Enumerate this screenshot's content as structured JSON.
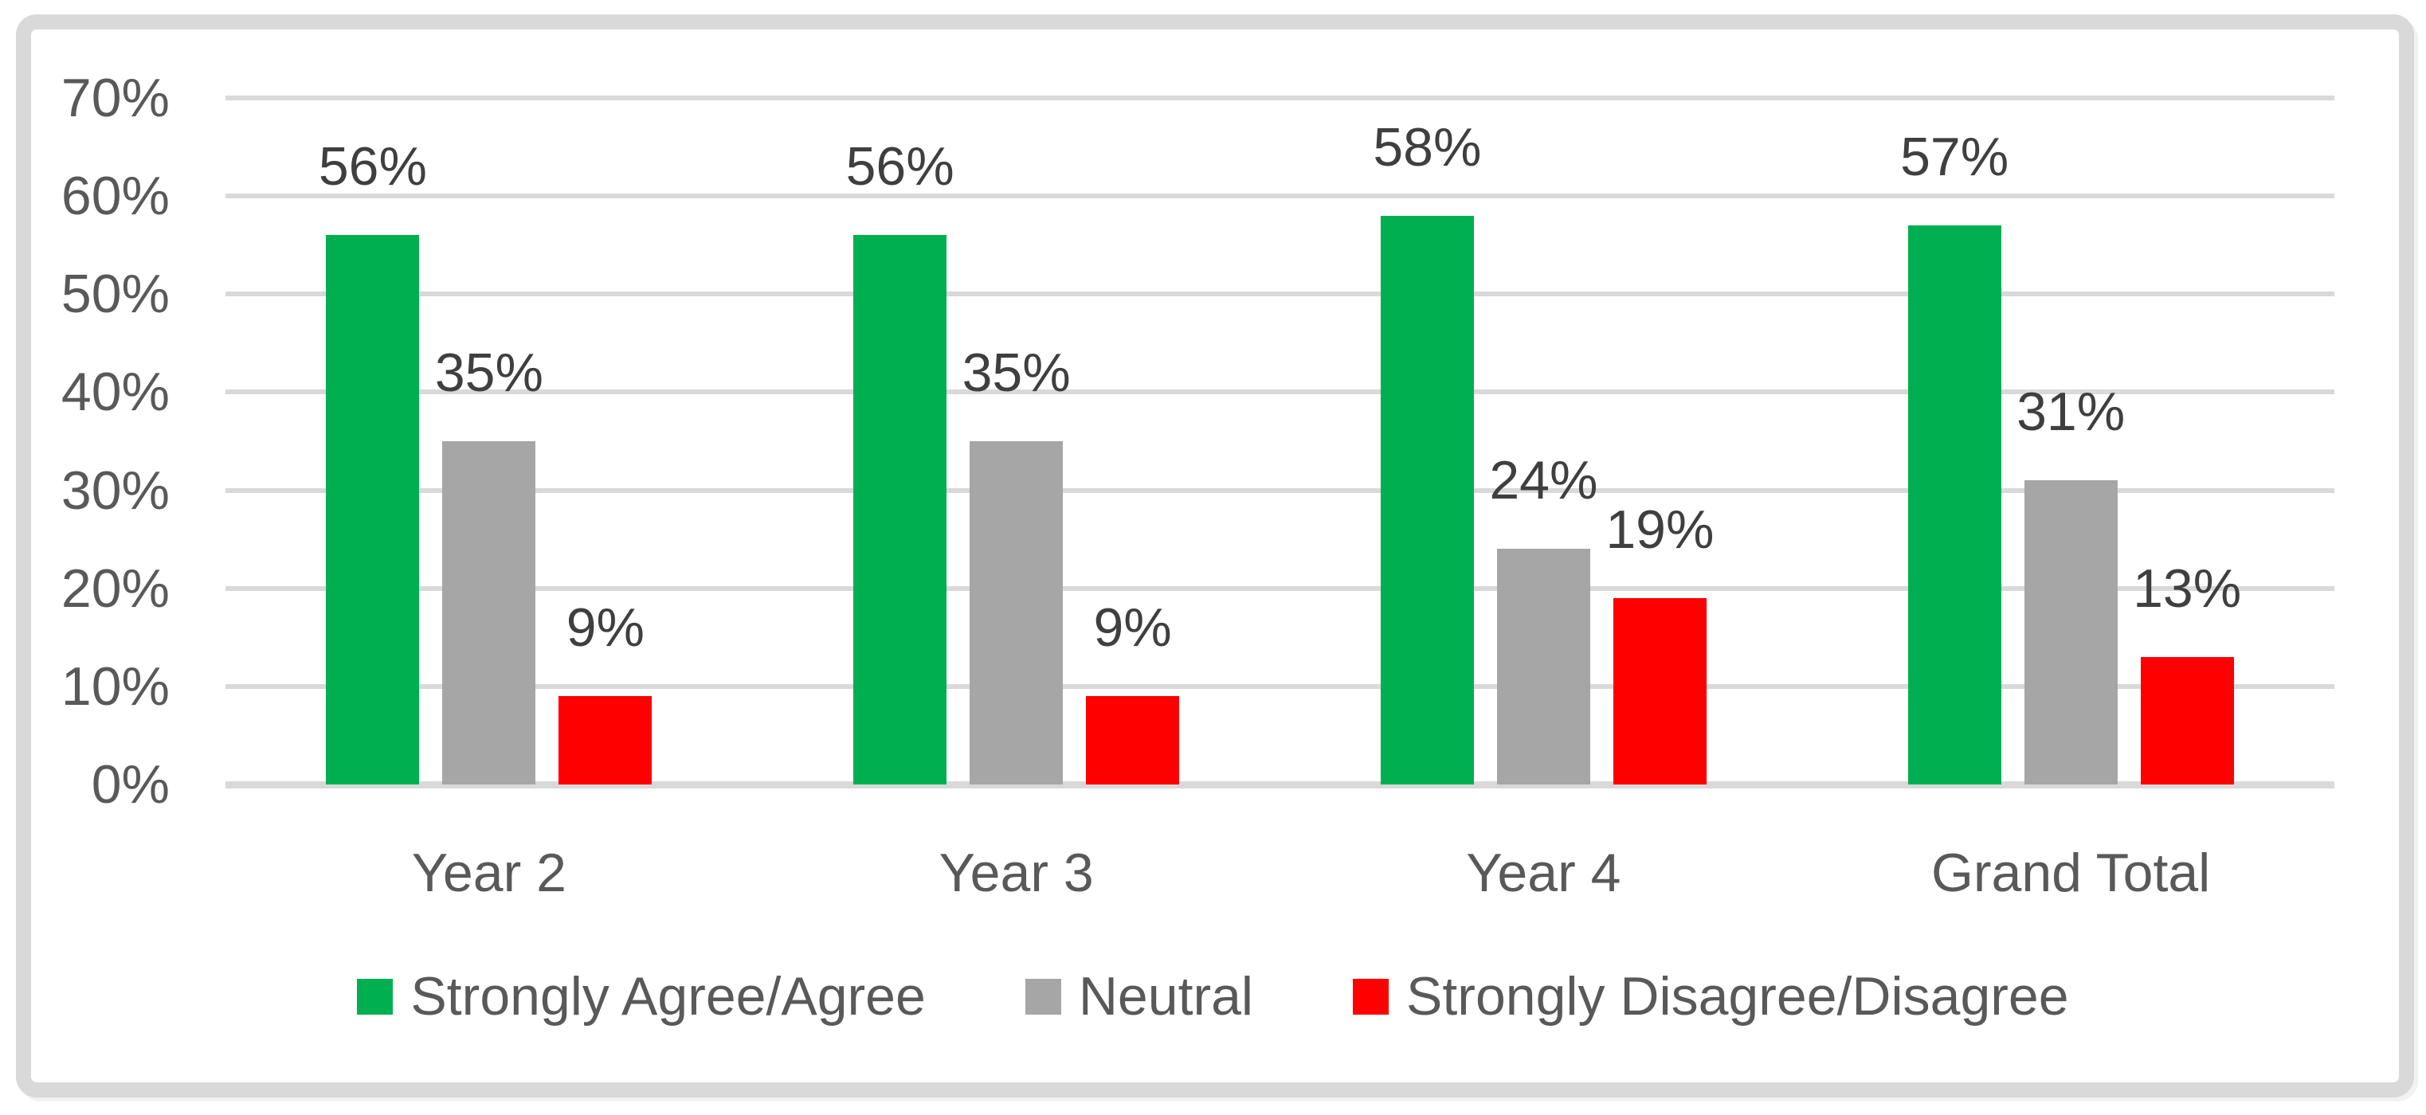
{
  "chart_data": {
    "type": "bar",
    "title": "",
    "xlabel": "",
    "ylabel": "",
    "categories": [
      "Year 2",
      "Year 3",
      "Year 4",
      "Grand Total"
    ],
    "series": [
      {
        "name": "Strongly Agree/Agree",
        "color": "#00B050",
        "values": [
          56,
          56,
          58,
          57
        ],
        "labels": [
          "56%",
          "56%",
          "58%",
          "57%"
        ]
      },
      {
        "name": "Neutral",
        "color": "#A6A6A6",
        "values": [
          35,
          35,
          24,
          31
        ],
        "labels": [
          "35%",
          "35%",
          "24%",
          "31%"
        ]
      },
      {
        "name": "Strongly Disagree/Disagree",
        "color": "#FF0000",
        "values": [
          9,
          9,
          19,
          13
        ],
        "labels": [
          "9%",
          "9%",
          "19%",
          "13%"
        ]
      }
    ],
    "ylim": [
      0,
      70
    ],
    "yticks": [
      70,
      60,
      50,
      40,
      30,
      20,
      10,
      0
    ],
    "ytick_labels": [
      "70%",
      "60%",
      "50%",
      "40%",
      "30%",
      "20%",
      "10%",
      "0%"
    ],
    "grid": true,
    "gridline_color": "#D9D9D9",
    "axis_text_color": "#595959",
    "data_label_color": "#3F3F3F",
    "frame_border_color": "#D9D9D9",
    "background_color": "#FFFFFF",
    "legend_position": "bottom"
  }
}
